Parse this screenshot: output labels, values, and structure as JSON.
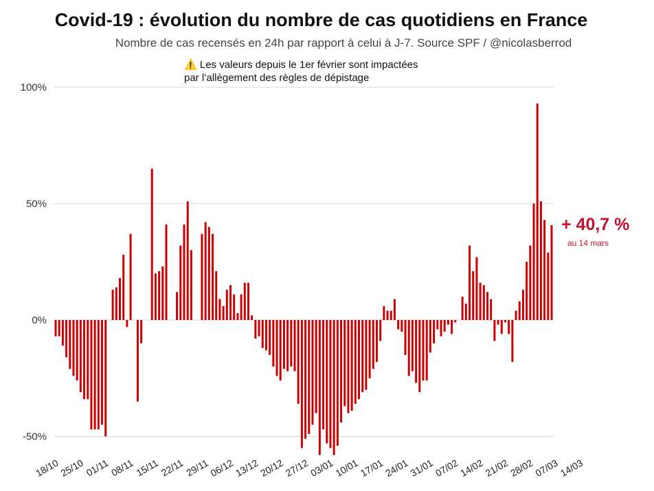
{
  "chart_data": {
    "type": "bar",
    "title": "Covid-19 : évolution du nombre de cas quotidiens en France",
    "subtitle": "Nombre de cas recensés en 24h par rapport à celui à J-7. Source SPF / @nicolasberrod",
    "note_line1": "Les valeurs depuis le 1er février sont impactées",
    "note_line2": "par l’allègement des règles de dépistage",
    "annotation_value": "+ 40,7 %",
    "annotation_date": "au 14 mars",
    "xlabel": "",
    "ylabel": "",
    "ylim": [
      -55,
      105
    ],
    "yticks": [
      -50,
      0,
      50,
      100
    ],
    "ytick_labels": [
      "-50%",
      "0%",
      "50%",
      "100%"
    ],
    "xtick_labels": [
      "18/10",
      "25/10",
      "01/11",
      "08/11",
      "15/11",
      "22/11",
      "29/11",
      "06/12",
      "13/12",
      "20/12",
      "27/12",
      "03/01",
      "10/01",
      "17/01",
      "24/01",
      "31/01",
      "07/02",
      "14/02",
      "21/02",
      "28/02",
      "07/03",
      "14/03"
    ],
    "start_date": "18/10",
    "end_date": "14/03",
    "values": [
      -7,
      -7,
      -11,
      -16,
      -21,
      -24,
      -26,
      -31,
      -34,
      -34,
      -47,
      -47,
      -47,
      -45,
      -50,
      0,
      13,
      14,
      18,
      28,
      -3,
      37,
      0,
      -35,
      -10,
      0,
      0,
      65,
      20,
      21,
      23,
      41,
      0,
      0,
      12,
      32,
      41,
      51,
      30,
      0,
      0,
      37,
      42,
      40,
      37,
      21,
      9,
      6,
      13,
      15,
      11,
      3,
      11,
      16,
      16,
      2,
      -8,
      -7,
      -12,
      -13,
      -15,
      -20,
      -24,
      -26,
      -21,
      -22,
      -20,
      -22,
      -36,
      -55,
      -51,
      -49,
      -45,
      -40,
      -58,
      -47,
      -53,
      -55,
      -58,
      -54,
      -44,
      -37,
      -40,
      -39,
      -36,
      -34,
      -31,
      -30,
      -25,
      -21,
      -18,
      -9,
      6,
      4,
      4,
      9,
      -4,
      -5,
      -15,
      -24,
      -22,
      -27,
      -31,
      -26,
      -26,
      -14,
      -10,
      -4,
      -7,
      -5,
      -2,
      -6,
      -1,
      0,
      10,
      7,
      32,
      21,
      27,
      16,
      15,
      12,
      9,
      -9,
      -2,
      -6,
      -1,
      -6,
      -18,
      4,
      8,
      13,
      25,
      32,
      50,
      93,
      51,
      43,
      29,
      40.7
    ],
    "bar_color": "#cc0000",
    "annotation_color": "#c8102e"
  }
}
